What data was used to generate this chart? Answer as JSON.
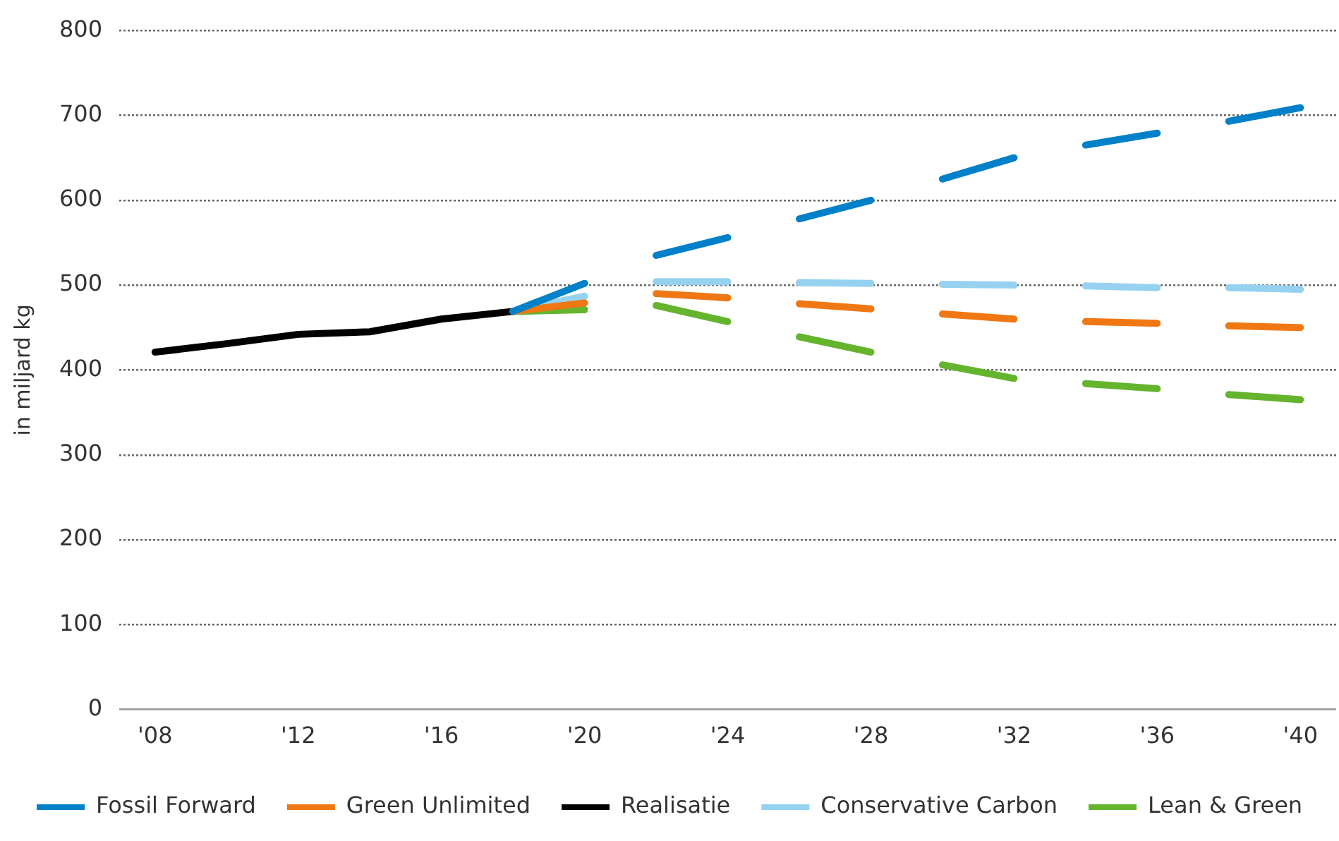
{
  "chart_data": {
    "type": "line",
    "ylabel": "in miljard kg",
    "xlim": [
      2007,
      2041
    ],
    "ylim": [
      0,
      800
    ],
    "xticks": [
      {
        "value": 2008,
        "label": "'08"
      },
      {
        "value": 2012,
        "label": "'12"
      },
      {
        "value": 2016,
        "label": "'16"
      },
      {
        "value": 2020,
        "label": "'20"
      },
      {
        "value": 2024,
        "label": "'24"
      },
      {
        "value": 2028,
        "label": "'28"
      },
      {
        "value": 2032,
        "label": "'32"
      },
      {
        "value": 2036,
        "label": "'36"
      },
      {
        "value": 2040,
        "label": "'40"
      }
    ],
    "yticks": [
      0,
      100,
      200,
      300,
      400,
      500,
      600,
      700,
      800
    ],
    "grid": "y",
    "legend": "bottom",
    "marker": "none",
    "series": [
      {
        "name": "Fossil Forward",
        "color": "#0080c9",
        "line_style": "dashed",
        "x": [
          2018,
          2020,
          2022,
          2024,
          2026,
          2028,
          2030,
          2032,
          2034,
          2036,
          2038,
          2040
        ],
        "values": [
          469,
          502,
          535,
          556,
          578,
          600,
          625,
          650,
          665,
          679,
          693,
          709
        ]
      },
      {
        "name": "Green Unlimited",
        "color": "#f07814",
        "line_style": "dashed",
        "x": [
          2018,
          2020,
          2022,
          2024,
          2026,
          2028,
          2030,
          2032,
          2034,
          2036,
          2038,
          2040
        ],
        "values": [
          469,
          479,
          490,
          485,
          478,
          472,
          466,
          460,
          457,
          455,
          452,
          450
        ]
      },
      {
        "name": "Realisatie",
        "color": "#000000",
        "x": [
          2008,
          2010,
          2012,
          2014,
          2016,
          2018
        ],
        "values": [
          421,
          431,
          442,
          445,
          460,
          469
        ]
      },
      {
        "name": "Conservative Carbon",
        "color": "#96d2f0",
        "line_style": "dashed",
        "x": [
          2018,
          2020,
          2022,
          2024,
          2026,
          2028,
          2030,
          2032,
          2034,
          2036,
          2038,
          2040
        ],
        "values": [
          469,
          487,
          504,
          504,
          503,
          502,
          501,
          500,
          499,
          497,
          497,
          495
        ]
      },
      {
        "name": "Lean & Green",
        "color": "#64b42d",
        "line_style": "dashed",
        "x": [
          2018,
          2020,
          2022,
          2024,
          2026,
          2028,
          2030,
          2032,
          2034,
          2036,
          2038,
          2040
        ],
        "values": [
          469,
          471,
          476,
          457,
          439,
          421,
          406,
          390,
          384,
          378,
          371,
          365
        ]
      }
    ]
  }
}
